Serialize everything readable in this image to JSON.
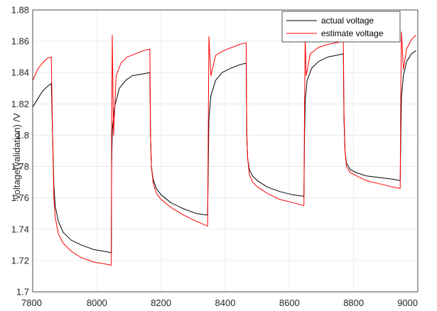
{
  "chart_data": {
    "type": "line",
    "title": "",
    "xlabel": "",
    "ylabel": "voltage(validation) /V",
    "xlim": [
      7800,
      9000
    ],
    "ylim": [
      1.7,
      1.88
    ],
    "xticks": [
      7800,
      8000,
      8200,
      8400,
      8600,
      8800,
      9000
    ],
    "xtick_labels": [
      "7800",
      "8000",
      "8200",
      "8400",
      "8600",
      "8800",
      "9000"
    ],
    "yticks": [
      1.7,
      1.72,
      1.74,
      1.76,
      1.78,
      1.8,
      1.82,
      1.84,
      1.86,
      1.88
    ],
    "ytick_labels": [
      "1.7",
      "1.72",
      "1.74",
      "1.76",
      "1.78",
      "1.8",
      "1.82",
      "1.84",
      "1.86",
      "1.88"
    ],
    "grid": true,
    "legend_position": "top-right",
    "series": [
      {
        "name": "actual voltage",
        "color": "#000000",
        "x": [
          7800,
          7815,
          7830,
          7845,
          7858,
          7862,
          7866,
          7870,
          7880,
          7895,
          7920,
          7950,
          7990,
          8020,
          8045,
          8046,
          8048,
          8055,
          8070,
          8090,
          8110,
          8140,
          8165,
          8167,
          8170,
          8175,
          8185,
          8200,
          8230,
          8270,
          8310,
          8345,
          8347,
          8349,
          8355,
          8370,
          8390,
          8420,
          8445,
          8465,
          8467,
          8470,
          8475,
          8485,
          8500,
          8530,
          8570,
          8610,
          8645,
          8647,
          8649,
          8655,
          8670,
          8690,
          8720,
          8745,
          8768,
          8770,
          8773,
          8778,
          8790,
          8810,
          8840,
          8880,
          8920,
          8945,
          8947,
          8949,
          8955,
          8965,
          8980,
          8995
        ],
        "y": [
          1.818,
          1.823,
          1.828,
          1.831,
          1.833,
          1.8,
          1.768,
          1.755,
          1.745,
          1.738,
          1.733,
          1.73,
          1.727,
          1.726,
          1.725,
          1.78,
          1.803,
          1.818,
          1.83,
          1.835,
          1.838,
          1.839,
          1.84,
          1.8,
          1.78,
          1.772,
          1.766,
          1.762,
          1.757,
          1.753,
          1.75,
          1.749,
          1.78,
          1.81,
          1.825,
          1.835,
          1.84,
          1.843,
          1.845,
          1.846,
          1.8,
          1.785,
          1.778,
          1.774,
          1.771,
          1.767,
          1.764,
          1.762,
          1.761,
          1.8,
          1.822,
          1.835,
          1.843,
          1.847,
          1.85,
          1.851,
          1.852,
          1.81,
          1.79,
          1.782,
          1.778,
          1.776,
          1.774,
          1.773,
          1.772,
          1.771,
          1.8,
          1.825,
          1.838,
          1.847,
          1.852,
          1.854
        ]
      },
      {
        "name": "estimate voltage",
        "color": "#ff0000",
        "x": [
          7800,
          7815,
          7830,
          7845,
          7858,
          7862,
          7866,
          7870,
          7880,
          7895,
          7920,
          7950,
          7990,
          8020,
          8045,
          8046,
          8048,
          8052,
          8060,
          8075,
          8095,
          8120,
          8145,
          8165,
          8167,
          8170,
          8175,
          8185,
          8200,
          8230,
          8270,
          8310,
          8345,
          8347,
          8349,
          8355,
          8370,
          8395,
          8420,
          8445,
          8465,
          8467,
          8470,
          8475,
          8485,
          8500,
          8530,
          8570,
          8610,
          8645,
          8647,
          8649,
          8652,
          8665,
          8690,
          8720,
          8745,
          8768,
          8770,
          8773,
          8778,
          8790,
          8810,
          8840,
          8880,
          8920,
          8945,
          8947,
          8949,
          8955,
          8965,
          8980,
          8995
        ],
        "y": [
          1.835,
          1.842,
          1.846,
          1.849,
          1.85,
          1.8,
          1.76,
          1.748,
          1.737,
          1.731,
          1.726,
          1.722,
          1.719,
          1.718,
          1.717,
          1.8,
          1.864,
          1.8,
          1.838,
          1.846,
          1.85,
          1.852,
          1.854,
          1.855,
          1.8,
          1.78,
          1.77,
          1.763,
          1.759,
          1.754,
          1.749,
          1.745,
          1.742,
          1.805,
          1.863,
          1.838,
          1.851,
          1.854,
          1.856,
          1.858,
          1.859,
          1.8,
          1.785,
          1.775,
          1.77,
          1.767,
          1.763,
          1.759,
          1.757,
          1.755,
          1.82,
          1.863,
          1.838,
          1.852,
          1.856,
          1.858,
          1.859,
          1.86,
          1.815,
          1.79,
          1.78,
          1.776,
          1.774,
          1.771,
          1.769,
          1.767,
          1.766,
          1.83,
          1.866,
          1.842,
          1.855,
          1.861,
          1.864
        ]
      }
    ]
  }
}
